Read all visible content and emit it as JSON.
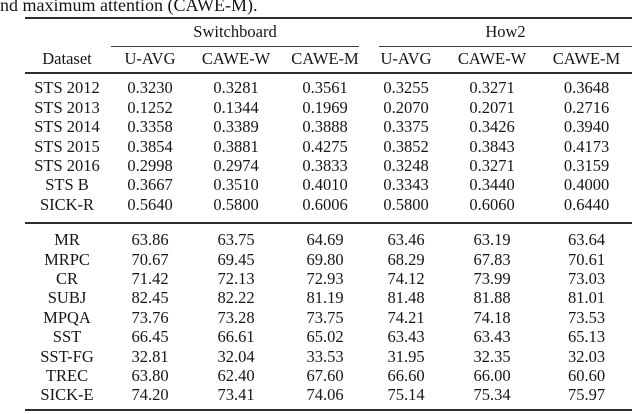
{
  "caption_fragment": "nd maximum attention (CAWE-M).",
  "table": {
    "dataset_header": "Dataset",
    "groups": [
      {
        "label": "Switchboard",
        "columns": [
          "U-AVG",
          "CAWE-W",
          "CAWE-M"
        ]
      },
      {
        "label": "How2",
        "columns": [
          "U-AVG",
          "CAWE-W",
          "CAWE-M"
        ]
      }
    ],
    "sections": [
      {
        "name": "sts-similarity",
        "rows": [
          {
            "dataset": "STS 2012",
            "values": [
              "0.3230",
              "0.3281",
              "0.3561",
              "0.3255",
              "0.3271",
              "0.3648"
            ],
            "bold": [
              2,
              5
            ]
          },
          {
            "dataset": "STS 2013",
            "values": [
              "0.1252",
              "0.1344",
              "0.1969",
              "0.2070",
              "0.2071",
              "0.2716"
            ],
            "bold": [
              2,
              5
            ]
          },
          {
            "dataset": "STS 2014",
            "values": [
              "0.3358",
              "0.3389",
              "0.3888",
              "0.3375",
              "0.3426",
              "0.3940"
            ],
            "bold": [
              2,
              5
            ]
          },
          {
            "dataset": "STS 2015",
            "values": [
              "0.3854",
              "0.3881",
              "0.4275",
              "0.3852",
              "0.3843",
              "0.4173"
            ],
            "bold": [
              2,
              5
            ]
          },
          {
            "dataset": "STS 2016",
            "values": [
              "0.2998",
              "0.2974",
              "0.3833",
              "0.3248",
              "0.3271",
              "0.3159"
            ],
            "bold": [
              2,
              4
            ]
          },
          {
            "dataset": "STS B",
            "values": [
              "0.3667",
              "0.3510",
              "0.4010",
              "0.3343",
              "0.3440",
              "0.4000"
            ],
            "bold": [
              2,
              5
            ]
          },
          {
            "dataset": "SICK-R",
            "values": [
              "0.5640",
              "0.5800",
              "0.6006",
              "0.5800",
              "0.6060",
              "0.6440"
            ],
            "bold": [
              2,
              5
            ]
          }
        ]
      },
      {
        "name": "downstream-tasks",
        "rows": [
          {
            "dataset": "MR",
            "values": [
              "63.86",
              "63.75",
              "64.69",
              "63.46",
              "63.19",
              "63.64"
            ],
            "bold": [
              2,
              5
            ]
          },
          {
            "dataset": "MRPC",
            "values": [
              "70.67",
              "69.45",
              "69.80",
              "68.29",
              "67.83",
              "70.61"
            ],
            "bold": [
              0,
              5
            ]
          },
          {
            "dataset": "CR",
            "values": [
              "71.42",
              "72.13",
              "72.93",
              "74.12",
              "73.99",
              "73.03"
            ],
            "bold": [
              2,
              3
            ]
          },
          {
            "dataset": "SUBJ",
            "values": [
              "82.45",
              "82.22",
              "81.19",
              "81.48",
              "81.88",
              "81.01"
            ],
            "bold": [
              0,
              4
            ]
          },
          {
            "dataset": "MPQA",
            "values": [
              "73.76",
              "73.28",
              "73.75",
              "74.21",
              "74.18",
              "73.53"
            ],
            "bold": [
              0,
              3
            ]
          },
          {
            "dataset": "SST",
            "values": [
              "66.45",
              "66.61",
              "65.02",
              "63.43",
              "63.43",
              "65.13"
            ],
            "bold": [
              1,
              5
            ]
          },
          {
            "dataset": "SST-FG",
            "values": [
              "32.81",
              "32.04",
              "33.53",
              "31.95",
              "32.35",
              "32.03"
            ],
            "bold": [
              2,
              4
            ]
          },
          {
            "dataset": "TREC",
            "values": [
              "63.80",
              "62.40",
              "67.60",
              "66.60",
              "66.00",
              "60.60"
            ],
            "bold": [
              2,
              3
            ]
          },
          {
            "dataset": "SICK-E",
            "values": [
              "74.20",
              "73.41",
              "74.06",
              "75.14",
              "75.34",
              "75.97"
            ],
            "bold": [
              0,
              5
            ]
          }
        ]
      }
    ]
  },
  "colors": {
    "background": "#ffffff",
    "text": "#161616",
    "rule": "#2e2e2e"
  }
}
